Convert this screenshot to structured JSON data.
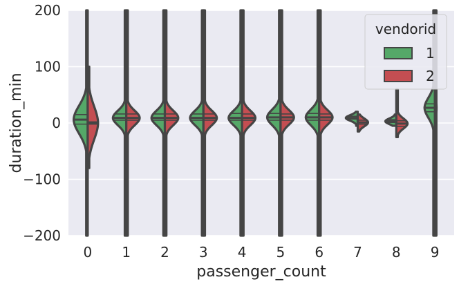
{
  "chart_data": {
    "type": "violin",
    "split": true,
    "xlabel": "passenger_count",
    "ylabel": "duration_min",
    "ylim": [
      -200,
      200
    ],
    "yticks": [
      -200,
      -100,
      0,
      100,
      200
    ],
    "ytick_labels": [
      "−200",
      "−100",
      "0",
      "100",
      "200"
    ],
    "categories": [
      "0",
      "1",
      "2",
      "3",
      "4",
      "5",
      "6",
      "7",
      "8",
      "9"
    ],
    "grid": true,
    "legend": {
      "title": "vendorid",
      "position": "top-right",
      "entries": [
        {
          "label": "1",
          "color": "#55a868"
        },
        {
          "label": "2",
          "color": "#c44e52"
        }
      ]
    },
    "series": [
      {
        "name": "1",
        "color": "#55a868",
        "violins": [
          {
            "category": "0",
            "lo": -200,
            "hi": 200,
            "peak": 6,
            "width": 0.42,
            "spread": 25,
            "q1": -2,
            "q3": 15,
            "median": 6
          },
          {
            "category": "1",
            "lo": -200,
            "hi": 200,
            "peak": 9,
            "width": 0.4,
            "spread": 13,
            "q1": 5,
            "q3": 16,
            "median": 9
          },
          {
            "category": "2",
            "lo": -200,
            "hi": 200,
            "peak": 9,
            "width": 0.4,
            "spread": 13,
            "q1": 5,
            "q3": 16,
            "median": 9
          },
          {
            "category": "3",
            "lo": -200,
            "hi": 200,
            "peak": 9,
            "width": 0.4,
            "spread": 13,
            "q1": 5,
            "q3": 16,
            "median": 9
          },
          {
            "category": "4",
            "lo": -200,
            "hi": 200,
            "peak": 9,
            "width": 0.4,
            "spread": 13,
            "q1": 5,
            "q3": 17,
            "median": 9
          },
          {
            "category": "5",
            "lo": -200,
            "hi": 200,
            "peak": 10,
            "width": 0.4,
            "spread": 14,
            "q1": 5,
            "q3": 17,
            "median": 10
          },
          {
            "category": "6",
            "lo": -200,
            "hi": 200,
            "peak": 10,
            "width": 0.4,
            "spread": 14,
            "q1": 5,
            "q3": 17,
            "median": 10
          },
          {
            "category": "7",
            "lo": -5,
            "hi": 20,
            "peak": 9,
            "width": 0.35,
            "spread": 5,
            "q1": 7,
            "q3": 12,
            "median": 9
          },
          {
            "category": "8",
            "lo": -5,
            "hi": 15,
            "peak": 3,
            "width": 0.32,
            "spread": 5,
            "q1": 1,
            "q3": 6,
            "median": 3
          },
          {
            "category": "9",
            "lo": -200,
            "hi": 200,
            "peak": 27,
            "width": 0.3,
            "spread": 18,
            "q1": 20,
            "q3": 34,
            "median": 27
          }
        ]
      },
      {
        "name": "2",
        "color": "#c44e52",
        "violins": [
          {
            "category": "0",
            "lo": -80,
            "hi": 100,
            "peak": 0,
            "width": 0.3,
            "spread": 30,
            "q1": -2,
            "q3": 2,
            "median": 0
          },
          {
            "category": "1",
            "lo": -200,
            "hi": 200,
            "peak": 9,
            "width": 0.4,
            "spread": 13,
            "q1": 5,
            "q3": 16,
            "median": 9
          },
          {
            "category": "2",
            "lo": -200,
            "hi": 200,
            "peak": 9,
            "width": 0.4,
            "spread": 13,
            "q1": 5,
            "q3": 16,
            "median": 9
          },
          {
            "category": "3",
            "lo": -200,
            "hi": 200,
            "peak": 9,
            "width": 0.4,
            "spread": 13,
            "q1": 5,
            "q3": 16,
            "median": 9
          },
          {
            "category": "4",
            "lo": -200,
            "hi": 200,
            "peak": 9,
            "width": 0.4,
            "spread": 13,
            "q1": 5,
            "q3": 16,
            "median": 9
          },
          {
            "category": "5",
            "lo": -200,
            "hi": 200,
            "peak": 10,
            "width": 0.4,
            "spread": 13,
            "q1": 5,
            "q3": 16,
            "median": 10
          },
          {
            "category": "6",
            "lo": -200,
            "hi": 200,
            "peak": 10,
            "width": 0.4,
            "spread": 13,
            "q1": 5,
            "q3": 16,
            "median": 10
          },
          {
            "category": "7",
            "lo": -15,
            "hi": 15,
            "peak": 1,
            "width": 0.3,
            "spread": 7,
            "q1": -2,
            "q3": 5,
            "median": 1
          },
          {
            "category": "8",
            "lo": -25,
            "hi": 60,
            "peak": -1,
            "width": 0.33,
            "spread": 9,
            "q1": -6,
            "q3": 4,
            "median": -1
          },
          {
            "category": "9",
            "lo": -200,
            "hi": 200,
            "peak": 27,
            "width": 0.02,
            "spread": 18,
            "q1": 27,
            "q3": 27,
            "median": 27
          }
        ]
      }
    ],
    "colors": {
      "plot_background": "#eaeaf2",
      "grid": "#ffffff",
      "outline": "#454545",
      "text": "#262626"
    }
  }
}
